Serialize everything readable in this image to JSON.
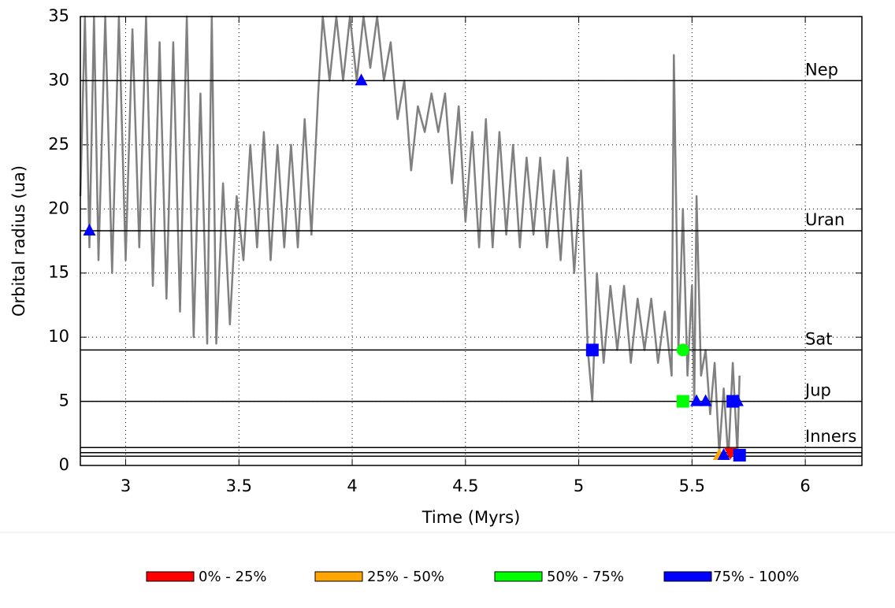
{
  "chart_data": {
    "type": "line",
    "x_label": "Time (Myrs)",
    "y_label": "Orbital radius (ua)",
    "xlim": [
      2.8,
      6.25
    ],
    "ylim": [
      0,
      35
    ],
    "xticks": [
      3,
      3.5,
      4,
      4.5,
      5,
      5.5,
      6
    ],
    "yticks": [
      0,
      5,
      10,
      15,
      20,
      25,
      30,
      35
    ],
    "grid": true,
    "series": [
      {
        "color": "#808080",
        "x": [
          2.8,
          2.82,
          2.84,
          2.86,
          2.88,
          2.91,
          2.94,
          2.97,
          3.0,
          3.03,
          3.06,
          3.09,
          3.12,
          3.15,
          3.18,
          3.21,
          3.24,
          3.27,
          3.3,
          3.33,
          3.36,
          3.38,
          3.4,
          3.43,
          3.46,
          3.49,
          3.52,
          3.55,
          3.58,
          3.61,
          3.64,
          3.67,
          3.7,
          3.73,
          3.76,
          3.79,
          3.82,
          3.85,
          3.87,
          3.9,
          3.93,
          3.96,
          3.99,
          4.02,
          4.05,
          4.08,
          4.11,
          4.14,
          4.17,
          4.2,
          4.23,
          4.26,
          4.29,
          4.32,
          4.35,
          4.38,
          4.41,
          4.44,
          4.47,
          4.5,
          4.53,
          4.56,
          4.59,
          4.62,
          4.65,
          4.68,
          4.71,
          4.74,
          4.77,
          4.8,
          4.83,
          4.86,
          4.89,
          4.92,
          4.95,
          4.98,
          5.01,
          5.04,
          5.06,
          5.08,
          5.11,
          5.14,
          5.17,
          5.2,
          5.23,
          5.26,
          5.29,
          5.32,
          5.35,
          5.38,
          5.41,
          5.42,
          5.44,
          5.46,
          5.48,
          5.5,
          5.51,
          5.52,
          5.54,
          5.56,
          5.58,
          5.6,
          5.62,
          5.64,
          5.66,
          5.68,
          5.7,
          5.71
        ],
        "y": [
          21,
          35,
          17,
          35,
          16,
          35,
          15,
          35,
          16,
          34,
          17,
          35,
          14,
          33,
          13,
          33,
          12,
          35,
          10,
          29,
          9.5,
          35,
          9.5,
          22,
          11,
          21,
          16,
          25,
          17,
          26,
          16,
          25,
          17,
          25,
          17,
          27,
          18,
          29,
          35,
          30,
          35,
          30,
          35,
          30,
          35,
          31,
          35,
          30,
          33,
          27,
          30,
          23,
          28,
          26,
          29,
          26,
          29,
          22,
          28,
          19,
          26,
          17,
          27,
          17,
          26,
          18,
          25,
          17,
          24,
          18,
          24,
          17,
          23,
          16,
          24,
          15,
          23,
          9,
          5,
          15,
          8,
          14,
          9,
          14,
          8,
          13,
          9,
          13,
          8,
          12,
          7,
          32,
          9,
          20,
          7,
          14,
          5,
          21,
          7,
          9,
          4,
          8,
          1,
          6,
          0.5,
          8,
          1,
          7
        ]
      }
    ],
    "ref_lines": [
      {
        "label": "Nep",
        "values": [
          30
        ]
      },
      {
        "label": "Uran",
        "values": [
          18.3
        ]
      },
      {
        "label": "Sat",
        "values": [
          9.0
        ]
      },
      {
        "label": "Jup",
        "values": [
          5.0
        ]
      },
      {
        "label": "Inners",
        "values": [
          1.4,
          1.0,
          0.72
        ]
      }
    ],
    "markers": [
      {
        "name": "0% - 25%",
        "color": "#ff0000",
        "points": [
          {
            "x": 5.67,
            "y": 1.0,
            "shape": "triangle-down"
          }
        ]
      },
      {
        "name": "25% - 50%",
        "color": "#ffa500",
        "points": [
          {
            "x": 5.62,
            "y": 0.8,
            "shape": "triangle"
          }
        ]
      },
      {
        "name": "50% - 75%",
        "color": "#00ff00",
        "points": [
          {
            "x": 5.46,
            "y": 9.0,
            "shape": "circle"
          },
          {
            "x": 5.46,
            "y": 5.0,
            "shape": "square"
          }
        ]
      },
      {
        "name": "75% - 100%",
        "color": "#0000ff",
        "points": [
          {
            "x": 2.84,
            "y": 18.3,
            "shape": "triangle"
          },
          {
            "x": 4.04,
            "y": 30.0,
            "shape": "triangle"
          },
          {
            "x": 5.06,
            "y": 9.0,
            "shape": "square"
          },
          {
            "x": 5.52,
            "y": 5.0,
            "shape": "triangle"
          },
          {
            "x": 5.56,
            "y": 5.0,
            "shape": "triangle"
          },
          {
            "x": 5.68,
            "y": 5.0,
            "shape": "square"
          },
          {
            "x": 5.7,
            "y": 5.0,
            "shape": "triangle"
          },
          {
            "x": 5.64,
            "y": 0.8,
            "shape": "triangle"
          },
          {
            "x": 5.71,
            "y": 0.8,
            "shape": "square"
          }
        ]
      }
    ]
  }
}
